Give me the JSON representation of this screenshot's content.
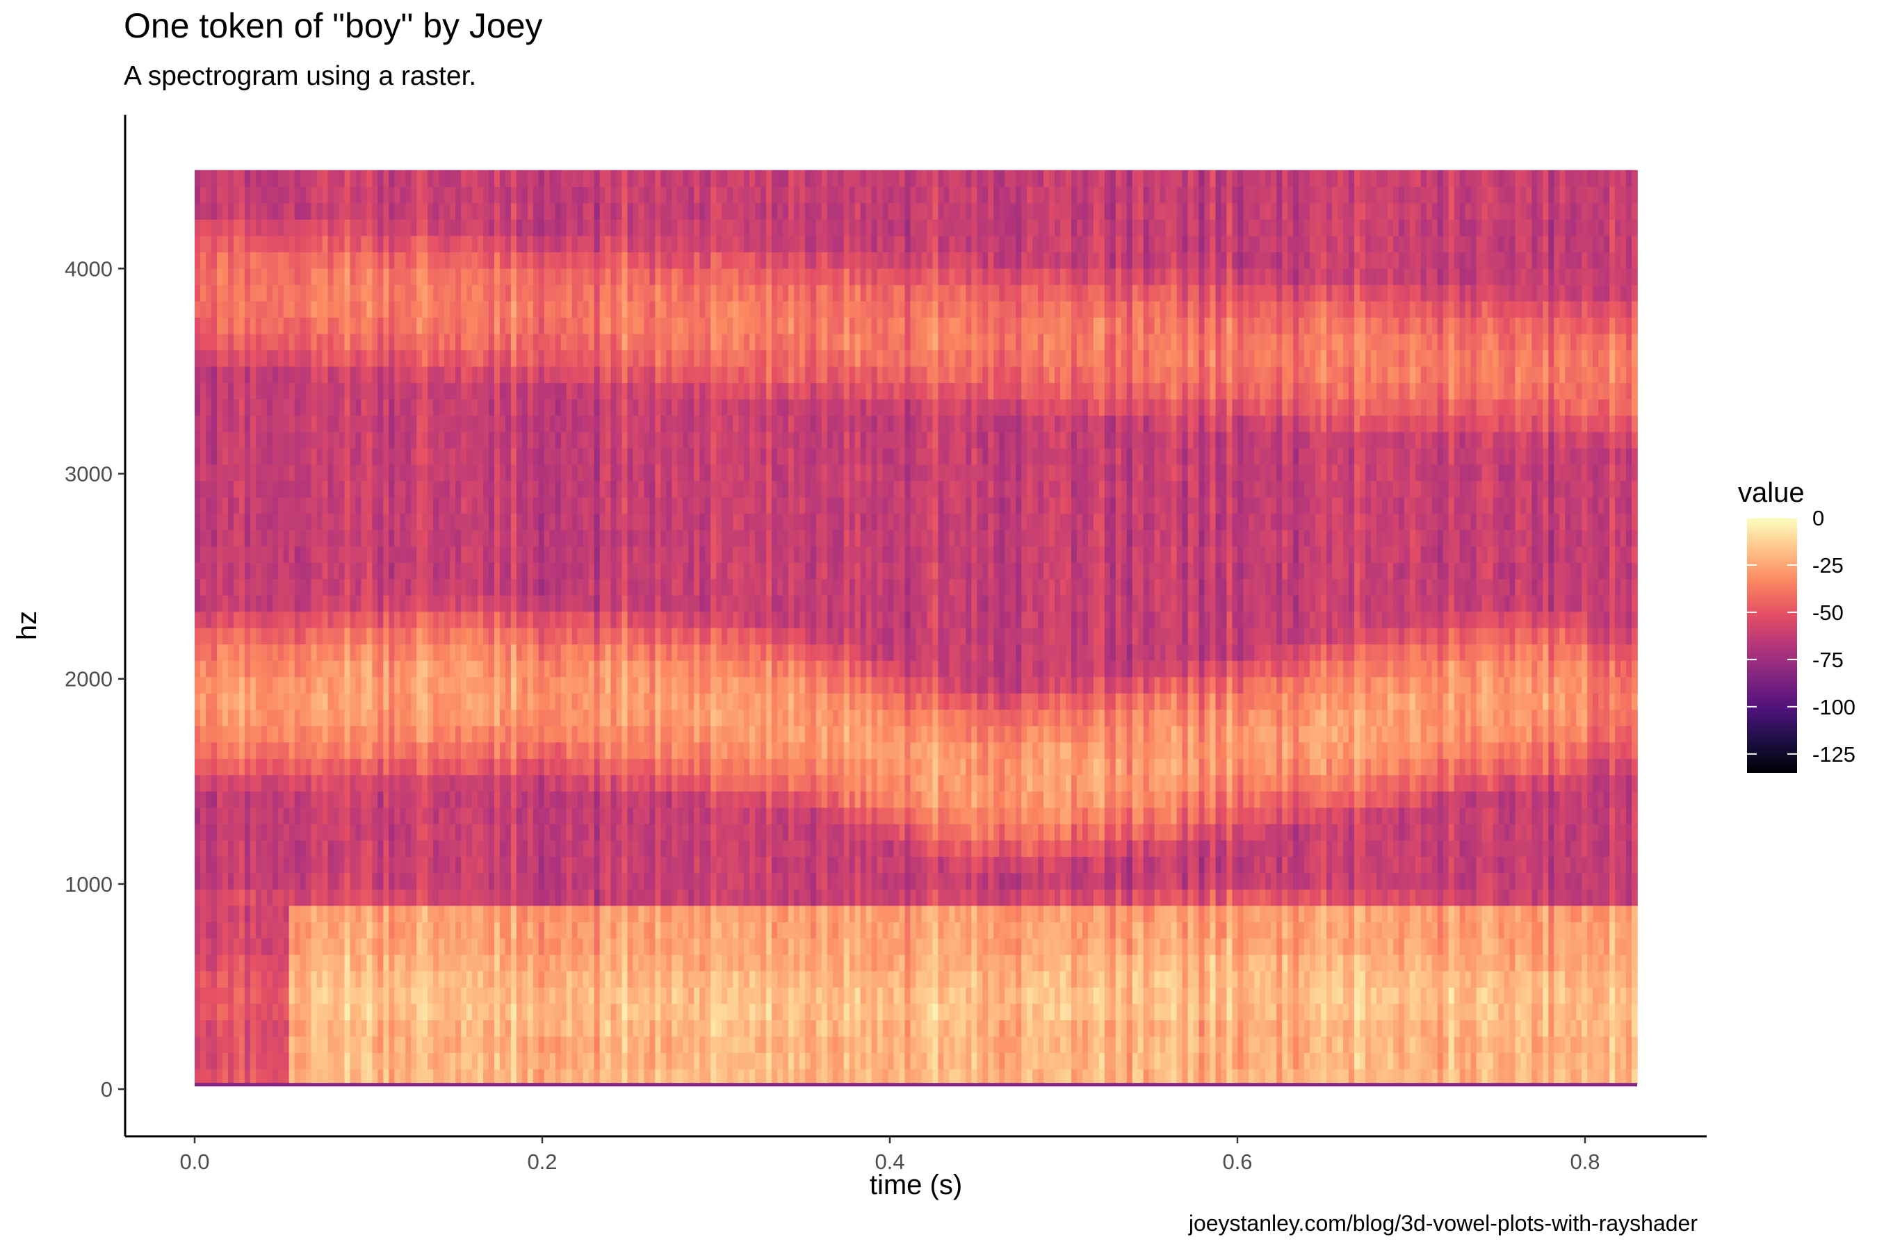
{
  "chart_data": {
    "type": "heatmap",
    "title": "One token of \"boy\" by Joey",
    "subtitle": "A spectrogram using a raster.",
    "caption": "joeystanley.com/blog/3d-vowel-plots-with-rayshader",
    "xlabel": "time (s)",
    "ylabel": "hz",
    "xlim": [
      -0.04,
      0.87
    ],
    "ylim": [
      -230,
      4750
    ],
    "x_data_range": [
      0.0,
      0.83
    ],
    "y_data_range": [
      20,
      4480
    ],
    "x_ticks": [
      0.0,
      0.2,
      0.4,
      0.6,
      0.8
    ],
    "x_tick_labels": [
      "0.0",
      "0.2",
      "0.4",
      "0.6",
      "0.8"
    ],
    "y_ticks": [
      0,
      1000,
      2000,
      3000,
      4000
    ],
    "y_tick_labels": [
      "0",
      "1000",
      "2000",
      "3000",
      "4000"
    ],
    "grid": false,
    "legend": {
      "title": "value",
      "position": "right",
      "breaks": [
        0,
        -25,
        -50,
        -75,
        -100,
        -125
      ],
      "labels": [
        "0",
        "-25",
        "-50",
        "-75",
        "-100",
        "-125"
      ],
      "range": [
        -135,
        0
      ],
      "palette": "magma",
      "colors": [
        "#000004",
        "#1c1044",
        "#4f127b",
        "#812581",
        "#b5367a",
        "#e55064",
        "#fb8761",
        "#fec287",
        "#fcfdbf"
      ]
    },
    "formants": [
      {
        "time": [
          0.0,
          0.1,
          0.2,
          0.3,
          0.4,
          0.5,
          0.6,
          0.7,
          0.83
        ],
        "hz": [
          450,
          450,
          420,
          400,
          420,
          450,
          500,
          450,
          400
        ],
        "strength": -18
      },
      {
        "time": [
          0.05,
          0.15,
          0.25,
          0.35,
          0.45,
          0.55,
          0.65,
          0.75
        ],
        "hz": [
          1900,
          1950,
          1900,
          1800,
          1500,
          1600,
          1750,
          1900
        ],
        "strength": -28
      },
      {
        "time": [
          0.0,
          0.2,
          0.4,
          0.6,
          0.83
        ],
        "hz": [
          3900,
          3800,
          3700,
          3600,
          3500
        ],
        "strength": -38
      }
    ]
  }
}
